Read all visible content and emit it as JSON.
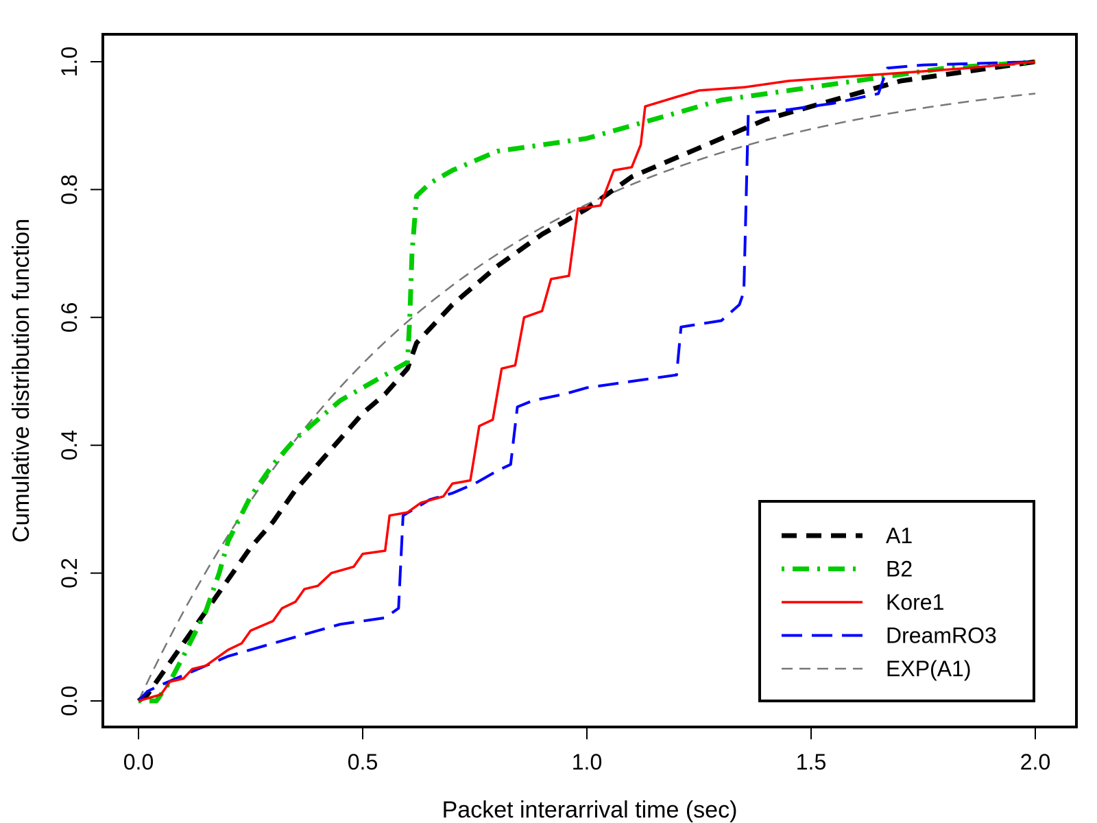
{
  "chart_data": {
    "type": "line",
    "title": "",
    "xlabel": "Packet interarrival time (sec)",
    "ylabel": "Cumulative distribution function",
    "xlim": [
      0,
      2
    ],
    "ylim": [
      0,
      1
    ],
    "xticks": [
      "0.0",
      "0.5",
      "1.0",
      "1.5",
      "2.0"
    ],
    "yticks": [
      "0.0",
      "0.2",
      "0.4",
      "0.6",
      "0.8",
      "1.0"
    ],
    "grid": false,
    "legend_position": "bottom-right",
    "series": [
      {
        "name": "A1",
        "color": "#000000",
        "style": "dashed-thick",
        "points": [
          [
            0,
            0
          ],
          [
            0.02,
            0.01
          ],
          [
            0.05,
            0.04
          ],
          [
            0.1,
            0.09
          ],
          [
            0.15,
            0.14
          ],
          [
            0.2,
            0.19
          ],
          [
            0.25,
            0.24
          ],
          [
            0.3,
            0.28
          ],
          [
            0.35,
            0.33
          ],
          [
            0.4,
            0.37
          ],
          [
            0.45,
            0.41
          ],
          [
            0.5,
            0.45
          ],
          [
            0.55,
            0.48
          ],
          [
            0.6,
            0.52
          ],
          [
            0.62,
            0.56
          ],
          [
            0.7,
            0.62
          ],
          [
            0.8,
            0.68
          ],
          [
            0.9,
            0.73
          ],
          [
            1.0,
            0.77
          ],
          [
            1.1,
            0.82
          ],
          [
            1.2,
            0.85
          ],
          [
            1.3,
            0.88
          ],
          [
            1.4,
            0.91
          ],
          [
            1.5,
            0.93
          ],
          [
            1.6,
            0.95
          ],
          [
            1.7,
            0.97
          ],
          [
            1.8,
            0.98
          ],
          [
            1.9,
            0.99
          ],
          [
            2.0,
            1.0
          ]
        ]
      },
      {
        "name": "B2",
        "color": "#00cc00",
        "style": "dotdash-thick",
        "points": [
          [
            0,
            0
          ],
          [
            0.04,
            0.0
          ],
          [
            0.07,
            0.03
          ],
          [
            0.1,
            0.07
          ],
          [
            0.15,
            0.14
          ],
          [
            0.18,
            0.2
          ],
          [
            0.2,
            0.25
          ],
          [
            0.25,
            0.32
          ],
          [
            0.3,
            0.37
          ],
          [
            0.35,
            0.41
          ],
          [
            0.4,
            0.44
          ],
          [
            0.45,
            0.47
          ],
          [
            0.5,
            0.49
          ],
          [
            0.55,
            0.51
          ],
          [
            0.6,
            0.53
          ],
          [
            0.605,
            0.6
          ],
          [
            0.61,
            0.7
          ],
          [
            0.62,
            0.79
          ],
          [
            0.65,
            0.81
          ],
          [
            0.7,
            0.83
          ],
          [
            0.8,
            0.86
          ],
          [
            0.9,
            0.87
          ],
          [
            1.0,
            0.88
          ],
          [
            1.1,
            0.9
          ],
          [
            1.2,
            0.92
          ],
          [
            1.3,
            0.94
          ],
          [
            1.4,
            0.95
          ],
          [
            1.5,
            0.96
          ],
          [
            1.6,
            0.97
          ],
          [
            1.7,
            0.98
          ],
          [
            1.8,
            0.99
          ],
          [
            1.9,
            0.995
          ],
          [
            2.0,
            1.0
          ]
        ]
      },
      {
        "name": "Kore1",
        "color": "#ff0000",
        "style": "solid",
        "points": [
          [
            0,
            0
          ],
          [
            0.05,
            0.01
          ],
          [
            0.07,
            0.03
          ],
          [
            0.1,
            0.035
          ],
          [
            0.12,
            0.05
          ],
          [
            0.15,
            0.055
          ],
          [
            0.18,
            0.07
          ],
          [
            0.2,
            0.08
          ],
          [
            0.23,
            0.09
          ],
          [
            0.25,
            0.11
          ],
          [
            0.3,
            0.125
          ],
          [
            0.32,
            0.145
          ],
          [
            0.35,
            0.155
          ],
          [
            0.37,
            0.175
          ],
          [
            0.4,
            0.18
          ],
          [
            0.43,
            0.2
          ],
          [
            0.48,
            0.21
          ],
          [
            0.5,
            0.23
          ],
          [
            0.55,
            0.235
          ],
          [
            0.56,
            0.29
          ],
          [
            0.6,
            0.295
          ],
          [
            0.63,
            0.31
          ],
          [
            0.68,
            0.32
          ],
          [
            0.7,
            0.34
          ],
          [
            0.74,
            0.345
          ],
          [
            0.76,
            0.43
          ],
          [
            0.79,
            0.44
          ],
          [
            0.81,
            0.52
          ],
          [
            0.84,
            0.525
          ],
          [
            0.86,
            0.6
          ],
          [
            0.9,
            0.61
          ],
          [
            0.92,
            0.66
          ],
          [
            0.96,
            0.665
          ],
          [
            0.98,
            0.77
          ],
          [
            1.03,
            0.775
          ],
          [
            1.06,
            0.83
          ],
          [
            1.1,
            0.835
          ],
          [
            1.12,
            0.87
          ],
          [
            1.13,
            0.93
          ],
          [
            1.2,
            0.945
          ],
          [
            1.25,
            0.955
          ],
          [
            1.35,
            0.96
          ],
          [
            1.45,
            0.97
          ],
          [
            1.55,
            0.975
          ],
          [
            1.65,
            0.98
          ],
          [
            1.75,
            0.985
          ],
          [
            1.85,
            0.99
          ],
          [
            2.0,
            1.0
          ]
        ]
      },
      {
        "name": "DreamRO3",
        "color": "#0000ff",
        "style": "longdash",
        "points": [
          [
            0,
            0
          ],
          [
            0.02,
            0.015
          ],
          [
            0.05,
            0.025
          ],
          [
            0.1,
            0.04
          ],
          [
            0.15,
            0.055
          ],
          [
            0.2,
            0.07
          ],
          [
            0.25,
            0.08
          ],
          [
            0.3,
            0.09
          ],
          [
            0.35,
            0.1
          ],
          [
            0.4,
            0.11
          ],
          [
            0.45,
            0.12
          ],
          [
            0.5,
            0.125
          ],
          [
            0.55,
            0.13
          ],
          [
            0.58,
            0.145
          ],
          [
            0.59,
            0.29
          ],
          [
            0.65,
            0.315
          ],
          [
            0.7,
            0.325
          ],
          [
            0.75,
            0.34
          ],
          [
            0.8,
            0.36
          ],
          [
            0.83,
            0.37
          ],
          [
            0.845,
            0.46
          ],
          [
            0.88,
            0.47
          ],
          [
            0.95,
            0.48
          ],
          [
            1.0,
            0.49
          ],
          [
            1.1,
            0.5
          ],
          [
            1.2,
            0.51
          ],
          [
            1.21,
            0.585
          ],
          [
            1.3,
            0.595
          ],
          [
            1.34,
            0.62
          ],
          [
            1.35,
            0.64
          ],
          [
            1.36,
            0.92
          ],
          [
            1.45,
            0.925
          ],
          [
            1.55,
            0.935
          ],
          [
            1.65,
            0.95
          ],
          [
            1.67,
            0.99
          ],
          [
            1.75,
            0.995
          ],
          [
            2.0,
            1.0
          ]
        ]
      },
      {
        "name": "EXP(A1)",
        "color": "#777777",
        "style": "dashed-thin",
        "function": "1 - exp(-1.5 * x)"
      }
    ]
  }
}
